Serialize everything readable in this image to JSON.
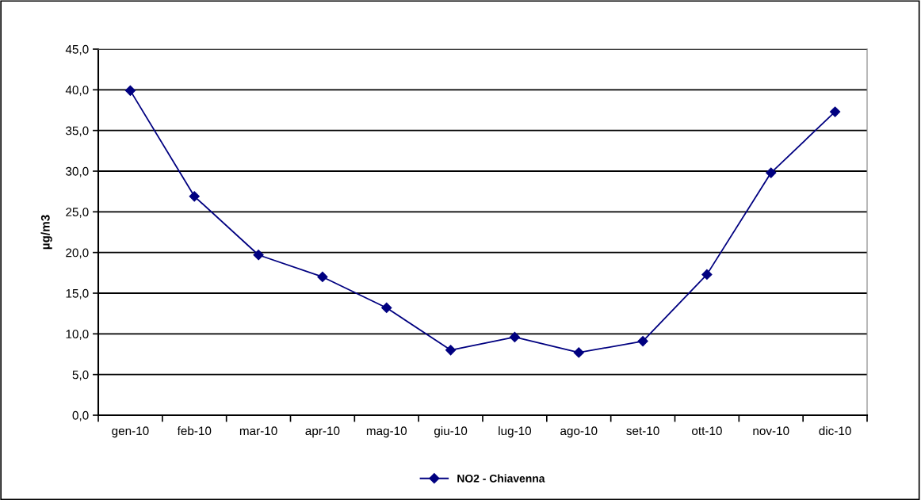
{
  "chart_data": {
    "type": "line",
    "ylabel": "µg/m3",
    "categories": [
      "gen-10",
      "feb-10",
      "mar-10",
      "apr-10",
      "mag-10",
      "giu-10",
      "lug-10",
      "ago-10",
      "set-10",
      "ott-10",
      "nov-10",
      "dic-10"
    ],
    "series": [
      {
        "name": "NO2 - Chiavenna",
        "color": "#000080",
        "values": [
          39.9,
          26.9,
          19.7,
          17.0,
          13.2,
          8.0,
          9.6,
          7.7,
          9.1,
          17.3,
          29.8,
          37.3
        ]
      }
    ],
    "ylim": [
      0,
      45
    ],
    "yticks": [
      {
        "value": 0,
        "label": "0,0"
      },
      {
        "value": 5,
        "label": "5,0"
      },
      {
        "value": 10,
        "label": "10,0"
      },
      {
        "value": 15,
        "label": "15,0"
      },
      {
        "value": 20,
        "label": "20,0"
      },
      {
        "value": 25,
        "label": "25,0"
      },
      {
        "value": 30,
        "label": "30,0"
      },
      {
        "value": 35,
        "label": "35,0"
      },
      {
        "value": 40,
        "label": "40,0"
      },
      {
        "value": 45,
        "label": "45,0"
      }
    ],
    "grid": "y",
    "legend": "bottom",
    "marker": "diamond",
    "line_style": "solid"
  }
}
